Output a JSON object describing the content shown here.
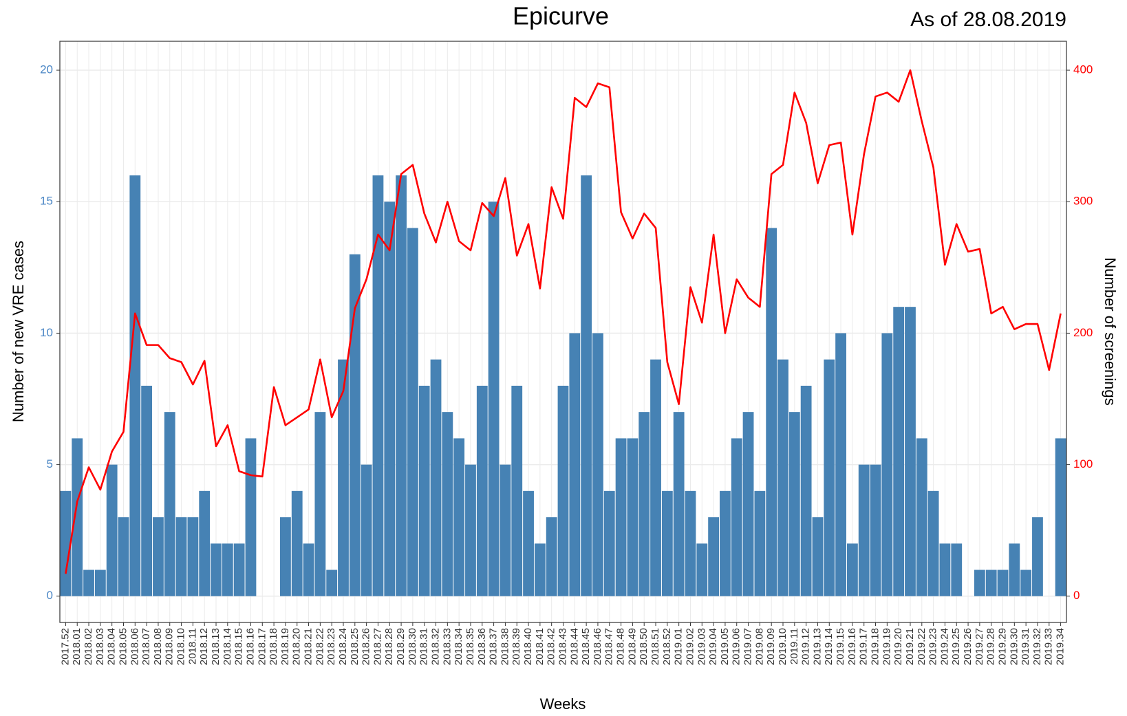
{
  "chart_data": {
    "type": "bar",
    "title": "Epicurve",
    "subtitle": "As of 28.08.2019",
    "x_label": "Weeks",
    "y_label": "Number of new VRE cases",
    "y2_label": "Number of screenings",
    "categories": [
      "2017.52",
      "2018.01",
      "2018.02",
      "2018.03",
      "2018.04",
      "2018.05",
      "2018.06",
      "2018.07",
      "2018.08",
      "2018.09",
      "2018.10",
      "2018.11",
      "2018.12",
      "2018.13",
      "2018.14",
      "2018.15",
      "2018.16",
      "2018.17",
      "2018.18",
      "2018.19",
      "2018.20",
      "2018.21",
      "2018.22",
      "2018.23",
      "2018.24",
      "2018.25",
      "2018.26",
      "2018.27",
      "2018.28",
      "2018.29",
      "2018.30",
      "2018.31",
      "2018.32",
      "2018.33",
      "2018.34",
      "2018.35",
      "2018.36",
      "2018.37",
      "2018.38",
      "2018.39",
      "2018.40",
      "2018.41",
      "2018.42",
      "2018.43",
      "2018.44",
      "2018.45",
      "2018.46",
      "2018.47",
      "2018.48",
      "2018.49",
      "2018.50",
      "2018.51",
      "2018.52",
      "2019.01",
      "2019.02",
      "2019.03",
      "2019.04",
      "2019.05",
      "2019.06",
      "2019.07",
      "2019.08",
      "2019.09",
      "2019.10",
      "2019.11",
      "2019.12",
      "2019.13",
      "2019.14",
      "2019.15",
      "2019.16",
      "2019.17",
      "2019.18",
      "2019.19",
      "2019.20",
      "2019.21",
      "2019.22",
      "2019.23",
      "2019.24",
      "2019.25",
      "2019.26",
      "2019.27",
      "2019.28",
      "2019.29",
      "2019.30",
      "2019.31",
      "2019.32",
      "2019.33",
      "2019.34"
    ],
    "series": [
      {
        "type": "bar",
        "color": "#4682b4",
        "values": [
          4,
          6,
          1,
          1,
          5,
          3,
          16,
          8,
          3,
          7,
          3,
          3,
          4,
          2,
          2,
          2,
          6,
          0,
          0,
          3,
          4,
          2,
          7,
          1,
          9,
          13,
          5,
          16,
          15,
          16,
          14,
          8,
          9,
          7,
          6,
          5,
          8,
          15,
          5,
          8,
          4,
          2,
          3,
          8,
          10,
          16,
          10,
          4,
          6,
          6,
          7,
          9,
          4,
          7,
          4,
          2,
          3,
          4,
          6,
          7,
          4,
          14,
          9,
          7,
          8,
          3,
          9,
          10,
          2,
          5,
          5,
          10,
          11,
          11,
          6,
          4,
          2,
          2,
          0,
          1,
          1,
          1,
          2,
          1,
          3,
          0,
          6
        ]
      },
      {
        "type": "line",
        "color": "#ff0000",
        "axis": "y2",
        "values": [
          17,
          72,
          98,
          81,
          110,
          125,
          215,
          191,
          191,
          181,
          178,
          161,
          179,
          114,
          130,
          95,
          92,
          91,
          159,
          130,
          136,
          142,
          180,
          136,
          156,
          219,
          241,
          275,
          263,
          321,
          328,
          291,
          269,
          300,
          270,
          263,
          299,
          289,
          318,
          259,
          283,
          234,
          311,
          287,
          379,
          372,
          390,
          387,
          292,
          272,
          291,
          280,
          178,
          146,
          235,
          208,
          275,
          200,
          241,
          227,
          220,
          321,
          328,
          383,
          360,
          314,
          343,
          345,
          275,
          336,
          380,
          383,
          376,
          400,
          361,
          326,
          252,
          283,
          262,
          264,
          215,
          220,
          203,
          207,
          207,
          172,
          215
        ]
      }
    ],
    "ylim": [
      -1,
      21.1
    ],
    "yticks": [
      0,
      5,
      10,
      15,
      20
    ],
    "y2lim": [
      -20,
      422
    ],
    "y2ticks": [
      0,
      100,
      200,
      300,
      400
    ],
    "grid": true
  }
}
